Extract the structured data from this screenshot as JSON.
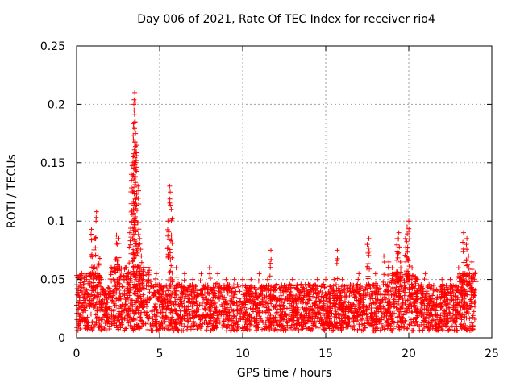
{
  "chart_data": {
    "type": "scatter",
    "title": "Day 006 of 2021, Rate Of TEC Index for receiver rio4",
    "xlabel": "GPS time / hours",
    "ylabel": "ROTI / TECUs",
    "xlim": [
      0,
      25
    ],
    "ylim": [
      0,
      0.25
    ],
    "xticks": [
      "0",
      "5",
      "10",
      "15",
      "20",
      "25"
    ],
    "yticks": [
      "0",
      "0.05",
      "0.1",
      "0.15",
      "0.2",
      "0.25"
    ],
    "grid": true,
    "legend": "none",
    "marker": "+",
    "color": "#ff0000",
    "series": [
      {
        "x": [
          0.0,
          0.1,
          0.2,
          0.3,
          0.4,
          0.5,
          0.6,
          0.8,
          0.9,
          1.0,
          1.1,
          1.2,
          1.3,
          1.4,
          1.5,
          1.6,
          1.8,
          2.0,
          2.2,
          2.4,
          2.5,
          2.6,
          2.8,
          3.0,
          3.2,
          3.3,
          3.4,
          3.45,
          3.5,
          3.55,
          3.6,
          3.7,
          3.8,
          3.9,
          4.0,
          4.2,
          4.5,
          4.8,
          5.0,
          5.2,
          5.5,
          5.6,
          5.7,
          5.8,
          6.0,
          6.5,
          7.0,
          7.5,
          8.0,
          8.5,
          9.0,
          9.5,
          10.0,
          10.5,
          11.0,
          11.5,
          11.7,
          12.0,
          12.5,
          13.0,
          13.5,
          14.0,
          14.5,
          15.0,
          15.5,
          15.7,
          16.0,
          16.5,
          17.0,
          17.5,
          17.6,
          18.0,
          18.5,
          18.8,
          19.0,
          19.3,
          19.4,
          19.5,
          19.8,
          19.9,
          20.0,
          20.2,
          20.5,
          21.0,
          21.5,
          22.0,
          22.5,
          23.0,
          23.3,
          23.5,
          23.6,
          23.8,
          24.0
        ],
        "y": [
          0.028,
          0.03,
          0.045,
          0.055,
          0.035,
          0.04,
          0.05,
          0.045,
          0.093,
          0.06,
          0.085,
          0.108,
          0.07,
          0.068,
          0.05,
          0.04,
          0.035,
          0.04,
          0.05,
          0.088,
          0.085,
          0.06,
          0.05,
          0.06,
          0.09,
          0.14,
          0.155,
          0.2,
          0.21,
          0.175,
          0.165,
          0.13,
          0.085,
          0.07,
          0.05,
          0.045,
          0.045,
          0.055,
          0.045,
          0.04,
          0.1,
          0.13,
          0.11,
          0.06,
          0.06,
          0.055,
          0.05,
          0.055,
          0.06,
          0.055,
          0.05,
          0.05,
          0.05,
          0.05,
          0.055,
          0.05,
          0.075,
          0.045,
          0.045,
          0.05,
          0.045,
          0.045,
          0.05,
          0.05,
          0.05,
          0.075,
          0.05,
          0.045,
          0.055,
          0.08,
          0.085,
          0.055,
          0.07,
          0.065,
          0.06,
          0.085,
          0.09,
          0.065,
          0.085,
          0.095,
          0.1,
          0.06,
          0.05,
          0.055,
          0.045,
          0.05,
          0.05,
          0.06,
          0.09,
          0.085,
          0.07,
          0.065,
          0.055
        ]
      }
    ]
  }
}
